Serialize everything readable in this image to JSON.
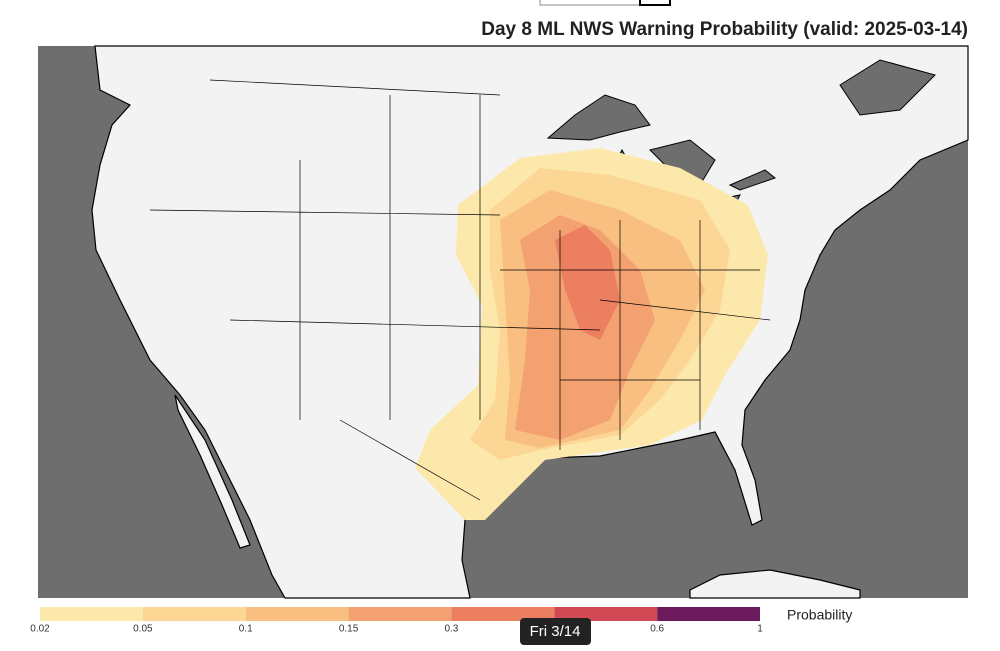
{
  "title": "Day 8 ML NWS Warning Probability (valid: 2025-03-14)",
  "colorbar": {
    "label": "Probability",
    "ticks": [
      0.02,
      0.05,
      0.1,
      0.15,
      0.3,
      null,
      0.6,
      1
    ],
    "colors": [
      "#fde8ab",
      "#fcd695",
      "#f9bf80",
      "#f3a170",
      "#ec7f60",
      "#d24956",
      "#6b1a5b"
    ]
  },
  "date_tooltip": "Fri 3/14"
}
